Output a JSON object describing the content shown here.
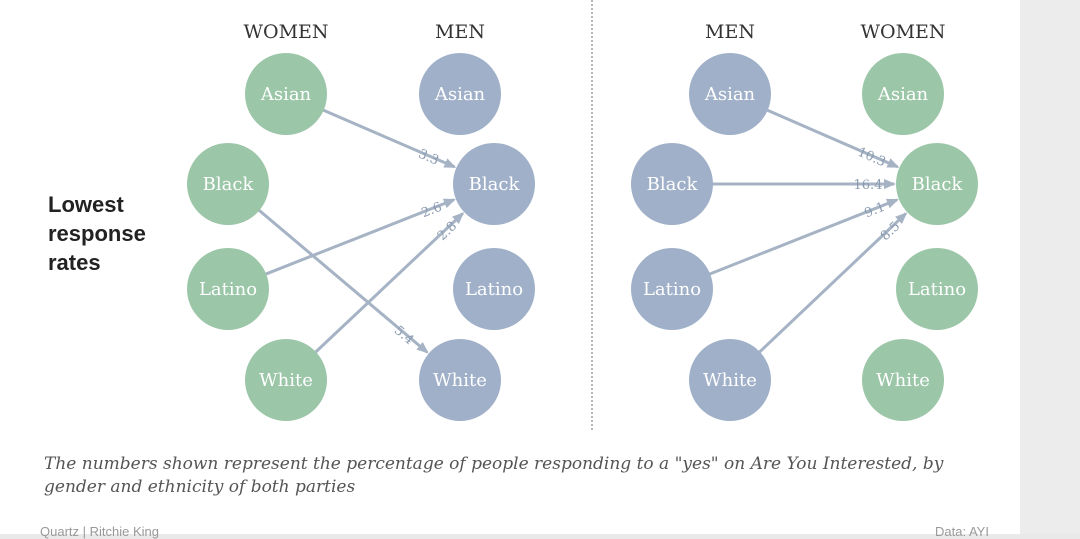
{
  "colors": {
    "women": "#9bc6a8",
    "men": "#9fb0c8",
    "arrow": "#a5b3c5",
    "divider": "#b8b8b8"
  },
  "side_label": "Lowest\nresponse\nrates",
  "caption": "The numbers shown represent the percentage of people responding to a \"yes\" on Are You Interested, by gender and ethnicity of both parties",
  "footer": {
    "left": "Quartz | Ritchie King",
    "right": "Data: AYI"
  },
  "panels": [
    {
      "columns": [
        {
          "header": "WOMEN",
          "gender": "women",
          "nodes": [
            "Asian",
            "Black",
            "Latino",
            "White"
          ]
        },
        {
          "header": "MEN",
          "gender": "men",
          "nodes": [
            "Asian",
            "Black",
            "Latino",
            "White"
          ]
        }
      ],
      "links": [
        {
          "from": "Asian",
          "to": "Black",
          "value": "3.3"
        },
        {
          "from": "Black",
          "to": "White",
          "value": "5.4"
        },
        {
          "from": "Latino",
          "to": "Black",
          "value": "2.6"
        },
        {
          "from": "White",
          "to": "Black",
          "value": "2.8"
        }
      ]
    },
    {
      "columns": [
        {
          "header": "MEN",
          "gender": "men",
          "nodes": [
            "Asian",
            "Black",
            "Latino",
            "White"
          ]
        },
        {
          "header": "WOMEN",
          "gender": "women",
          "nodes": [
            "Asian",
            "Black",
            "Latino",
            "White"
          ]
        }
      ],
      "links": [
        {
          "from": "Asian",
          "to": "Black",
          "value": "10.3"
        },
        {
          "from": "Black",
          "to": "Black",
          "value": "16.4"
        },
        {
          "from": "Latino",
          "to": "Black",
          "value": "9.1"
        },
        {
          "from": "White",
          "to": "Black",
          "value": "8.5"
        }
      ]
    }
  ]
}
